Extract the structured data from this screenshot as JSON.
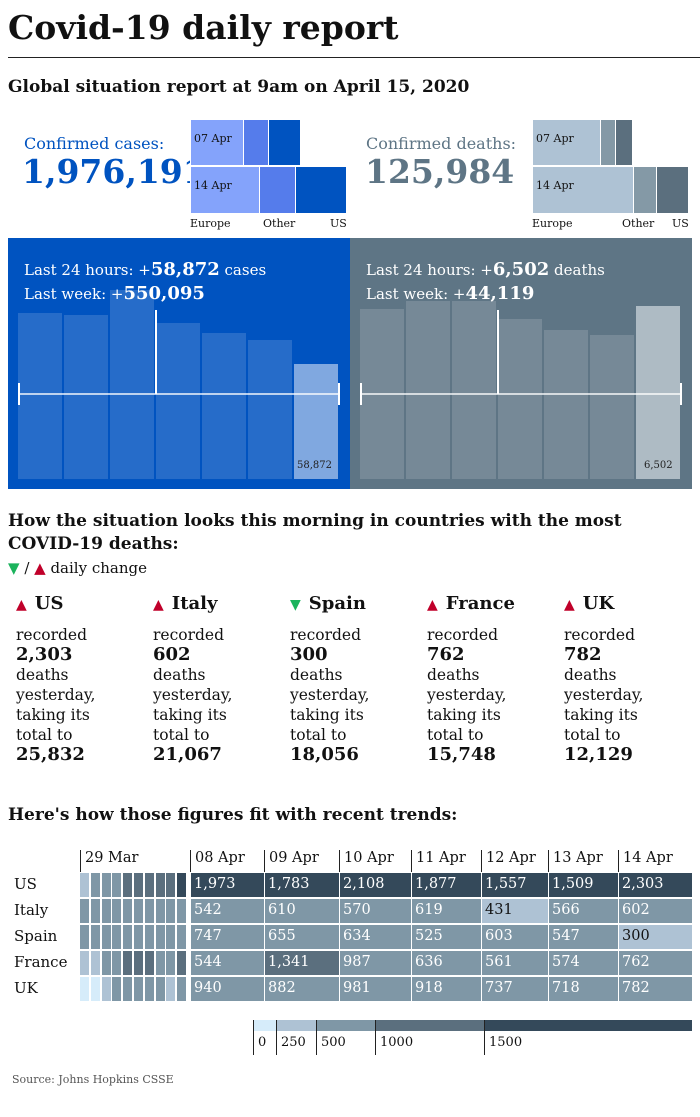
{
  "title": "Covid-19 daily report",
  "subtitle": "Global situation report at 9am on April 15, 2020",
  "cases": {
    "label": "Confirmed cases:",
    "total": "1,976,191",
    "color": "#0053c0",
    "treemap": {
      "rows": [
        "07 Apr",
        "14 Apr"
      ],
      "cols": [
        "Europe",
        "Other",
        "US"
      ]
    },
    "last24_prefix": "Last 24 hours: +",
    "last24": "58,872",
    "last24_suffix": " cases",
    "week_prefix": "Last week: +",
    "week": "550,095",
    "bar_values": [
      85000,
      84000,
      97000,
      80000,
      75000,
      71000,
      58872
    ],
    "last_bar_label": "58,872"
  },
  "deaths": {
    "label": "Confirmed deaths:",
    "total": "125,984",
    "color": "#5e7585",
    "treemap": {
      "rows": [
        "07 Apr",
        "14 Apr"
      ],
      "cols": [
        "Europe",
        "Other",
        "US"
      ]
    },
    "last24_prefix": "Last 24 hours: +",
    "last24": "6,502",
    "last24_suffix": " deaths",
    "week_prefix": "Last week: +",
    "week": "44,119",
    "bar_values": [
      6400,
      6700,
      6700,
      6000,
      5600,
      5400,
      6502
    ],
    "last_bar_label": "6,502"
  },
  "countries_heading": "How the situation looks this morning in countries with the most COVID-19 deaths:",
  "legend_down": "▼",
  "legend_sep": " / ",
  "legend_up": "▲",
  "legend_text": " daily change",
  "countries": [
    {
      "name": "US",
      "dir": "up",
      "arrow": "▲",
      "l1": "recorded",
      "deaths": "2,303",
      "l2": "deaths",
      "l3": "yesterday,",
      "l4": "taking its",
      "l5": "total to",
      "total": "25,832"
    },
    {
      "name": "Italy",
      "dir": "up",
      "arrow": "▲",
      "l1": "recorded",
      "deaths": "602",
      "l2": "deaths",
      "l3": "yesterday,",
      "l4": "taking its",
      "l5": "total to",
      "total": "21,067"
    },
    {
      "name": "Spain",
      "dir": "down",
      "arrow": "▼",
      "l1": "recorded",
      "deaths": "300",
      "l2": "deaths",
      "l3": "yesterday,",
      "l4": "taking its",
      "l5": "total to",
      "total": "18,056"
    },
    {
      "name": "France",
      "dir": "up",
      "arrow": "▲",
      "l1": "recorded",
      "deaths": "762",
      "l2": "deaths",
      "l3": "yesterday,",
      "l4": "taking its",
      "l5": "total to",
      "total": "15,748"
    },
    {
      "name": "UK",
      "dir": "up",
      "arrow": "▲",
      "l1": "recorded",
      "deaths": "782",
      "l2": "deaths",
      "l3": "yesterday,",
      "l4": "taking its",
      "l5": "total to",
      "total": "12,129"
    }
  ],
  "trends_heading": "Here's how those figures fit with recent trends:",
  "heatmap": {
    "early_label": "29 Mar",
    "dates": [
      "08 Apr",
      "09 Apr",
      "10 Apr",
      "11 Apr",
      "12 Apr",
      "13 Apr",
      "14 Apr"
    ],
    "rows": [
      {
        "country": "US",
        "early_levels": [
          1,
          2,
          2,
          2,
          3,
          3,
          3,
          3,
          3,
          4
        ],
        "values": [
          "1,973",
          "1,783",
          "2,108",
          "1,877",
          "1,557",
          "1,509",
          "2,303"
        ]
      },
      {
        "country": "Italy",
        "early_levels": [
          2,
          2,
          2,
          2,
          2,
          2,
          2,
          2,
          2,
          2
        ],
        "values": [
          "542",
          "610",
          "570",
          "619",
          "431",
          "566",
          "602"
        ]
      },
      {
        "country": "Spain",
        "early_levels": [
          2,
          2,
          2,
          2,
          2,
          2,
          2,
          2,
          2,
          2
        ],
        "values": [
          "747",
          "655",
          "634",
          "525",
          "603",
          "547",
          "300"
        ]
      },
      {
        "country": "France",
        "early_levels": [
          1,
          1,
          2,
          2,
          3,
          3,
          3,
          2,
          2,
          3
        ],
        "values": [
          "544",
          "1,341",
          "987",
          "636",
          "561",
          "574",
          "762"
        ]
      },
      {
        "country": "UK",
        "early_levels": [
          0,
          0,
          1,
          2,
          2,
          2,
          2,
          2,
          1,
          2
        ],
        "values": [
          "940",
          "882",
          "981",
          "918",
          "737",
          "718",
          "782"
        ]
      }
    ],
    "scale": [
      "0",
      "250",
      "500",
      "1000",
      "1500"
    ],
    "colors": [
      "#d6ecfa",
      "#aec2d4",
      "#7f97a6",
      "#5b6f7e",
      "#34495a"
    ]
  },
  "source": "Source: Johns Hopkins CSSE"
}
